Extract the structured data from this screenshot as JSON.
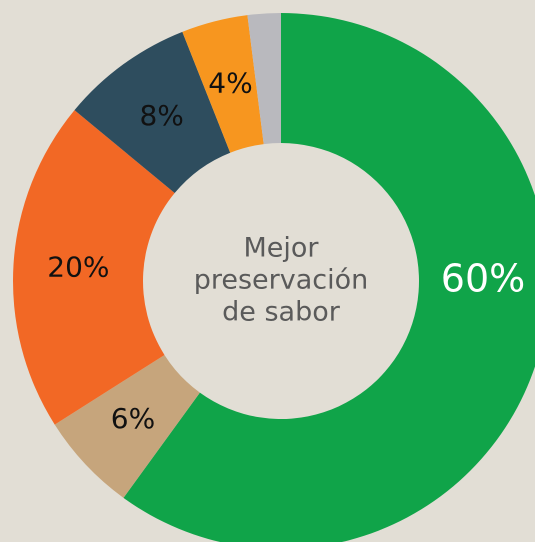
{
  "chart_data": {
    "type": "donut",
    "center_text": [
      "Mejor",
      "preservación",
      "de sabor"
    ],
    "values": [
      60,
      6,
      20,
      8,
      4,
      2
    ],
    "value_labels": [
      "60%",
      "6%",
      "20%",
      "8%",
      "4%",
      null
    ],
    "colors": [
      "#10a449",
      "#c6a57c",
      "#f26825",
      "#2e4d5e",
      "#f7961f",
      "#b9b9be"
    ],
    "label_colors": [
      "#ffffff",
      "#111111",
      "#111111",
      "#111111",
      "#111111",
      "#111111"
    ]
  }
}
